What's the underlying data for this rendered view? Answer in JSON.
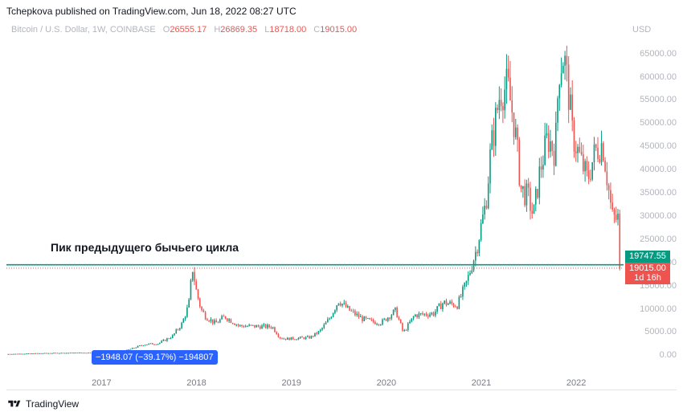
{
  "published": "Tchepkova published on TradingView.com, Jun 18, 2022 08:27 UTC",
  "legend": {
    "symbol": "Bitcoin / U.S. Dollar, 1W, COINBASE",
    "o_label": "O",
    "o": "26555.17",
    "h_label": "H",
    "h": "26869.35",
    "l_label": "L",
    "l": "18718.00",
    "c_label": "C",
    "c": "19015.00"
  },
  "currency": "USD",
  "annotation": "Пик предыдущего бычьего цикла",
  "measure_label": "−1948.07 (−39.17%) −194807",
  "tags": {
    "level": "19747.55",
    "last": "19015.00",
    "countdown": "1d 16h"
  },
  "footer": "TradingView",
  "colors": {
    "up": "#089981",
    "down": "#ef5350",
    "level_line": "#089981",
    "measure": "#2962ff"
  },
  "chart_data": {
    "type": "candlestick",
    "title": "Bitcoin / U.S. Dollar, 1W, COINBASE",
    "ylim": [
      -2500,
      70000
    ],
    "y_ticks": [
      "0.00",
      "5000.00",
      "10000.00",
      "15000.00",
      "20000.00",
      "25000.00",
      "30000.00",
      "35000.00",
      "40000.00",
      "45000.00",
      "50000.00",
      "55000.00",
      "60000.00",
      "65000.00"
    ],
    "x_ticks": [
      "2017",
      "2018",
      "2019",
      "2020",
      "2021",
      "2022"
    ],
    "horizontal_level": 19747.55,
    "last_price": 19015.0,
    "price_path": [
      [
        2016.0,
        430
      ],
      [
        2016.5,
        650
      ],
      [
        2016.9,
        740
      ],
      [
        2017.0,
        1000
      ],
      [
        2017.25,
        1100
      ],
      [
        2017.45,
        2500
      ],
      [
        2017.6,
        2700
      ],
      [
        2017.75,
        4300
      ],
      [
        2017.85,
        7000
      ],
      [
        2017.92,
        11000
      ],
      [
        2017.96,
        19000
      ],
      [
        2018.0,
        14000
      ],
      [
        2018.05,
        10000
      ],
      [
        2018.1,
        8500
      ],
      [
        2018.2,
        7000
      ],
      [
        2018.3,
        8500
      ],
      [
        2018.45,
        6500
      ],
      [
        2018.6,
        6400
      ],
      [
        2018.8,
        6300
      ],
      [
        2018.88,
        4000
      ],
      [
        2018.95,
        3700
      ],
      [
        2019.2,
        4000
      ],
      [
        2019.3,
        5300
      ],
      [
        2019.4,
        8000
      ],
      [
        2019.5,
        12000
      ],
      [
        2019.6,
        10000
      ],
      [
        2019.75,
        8000
      ],
      [
        2019.85,
        7400
      ],
      [
        2019.95,
        7200
      ],
      [
        2020.1,
        9800
      ],
      [
        2020.18,
        5000
      ],
      [
        2020.3,
        8800
      ],
      [
        2020.5,
        9200
      ],
      [
        2020.6,
        11500
      ],
      [
        2020.75,
        11000
      ],
      [
        2020.85,
        16000
      ],
      [
        2020.95,
        23000
      ],
      [
        2021.05,
        33000
      ],
      [
        2021.1,
        44000
      ],
      [
        2021.2,
        57000
      ],
      [
        2021.28,
        58000
      ],
      [
        2021.35,
        50000
      ],
      [
        2021.42,
        36000
      ],
      [
        2021.5,
        34000
      ],
      [
        2021.55,
        30000
      ],
      [
        2021.62,
        40000
      ],
      [
        2021.7,
        47000
      ],
      [
        2021.78,
        44000
      ],
      [
        2021.82,
        62000
      ],
      [
        2021.87,
        65000
      ],
      [
        2021.92,
        57000
      ],
      [
        2021.96,
        48000
      ],
      [
        2022.05,
        42000
      ],
      [
        2022.12,
        38000
      ],
      [
        2022.2,
        44000
      ],
      [
        2022.28,
        46000
      ],
      [
        2022.33,
        38000
      ],
      [
        2022.38,
        30000
      ],
      [
        2022.42,
        29500
      ],
      [
        2022.45,
        29800
      ],
      [
        2022.46,
        19015
      ]
    ]
  }
}
